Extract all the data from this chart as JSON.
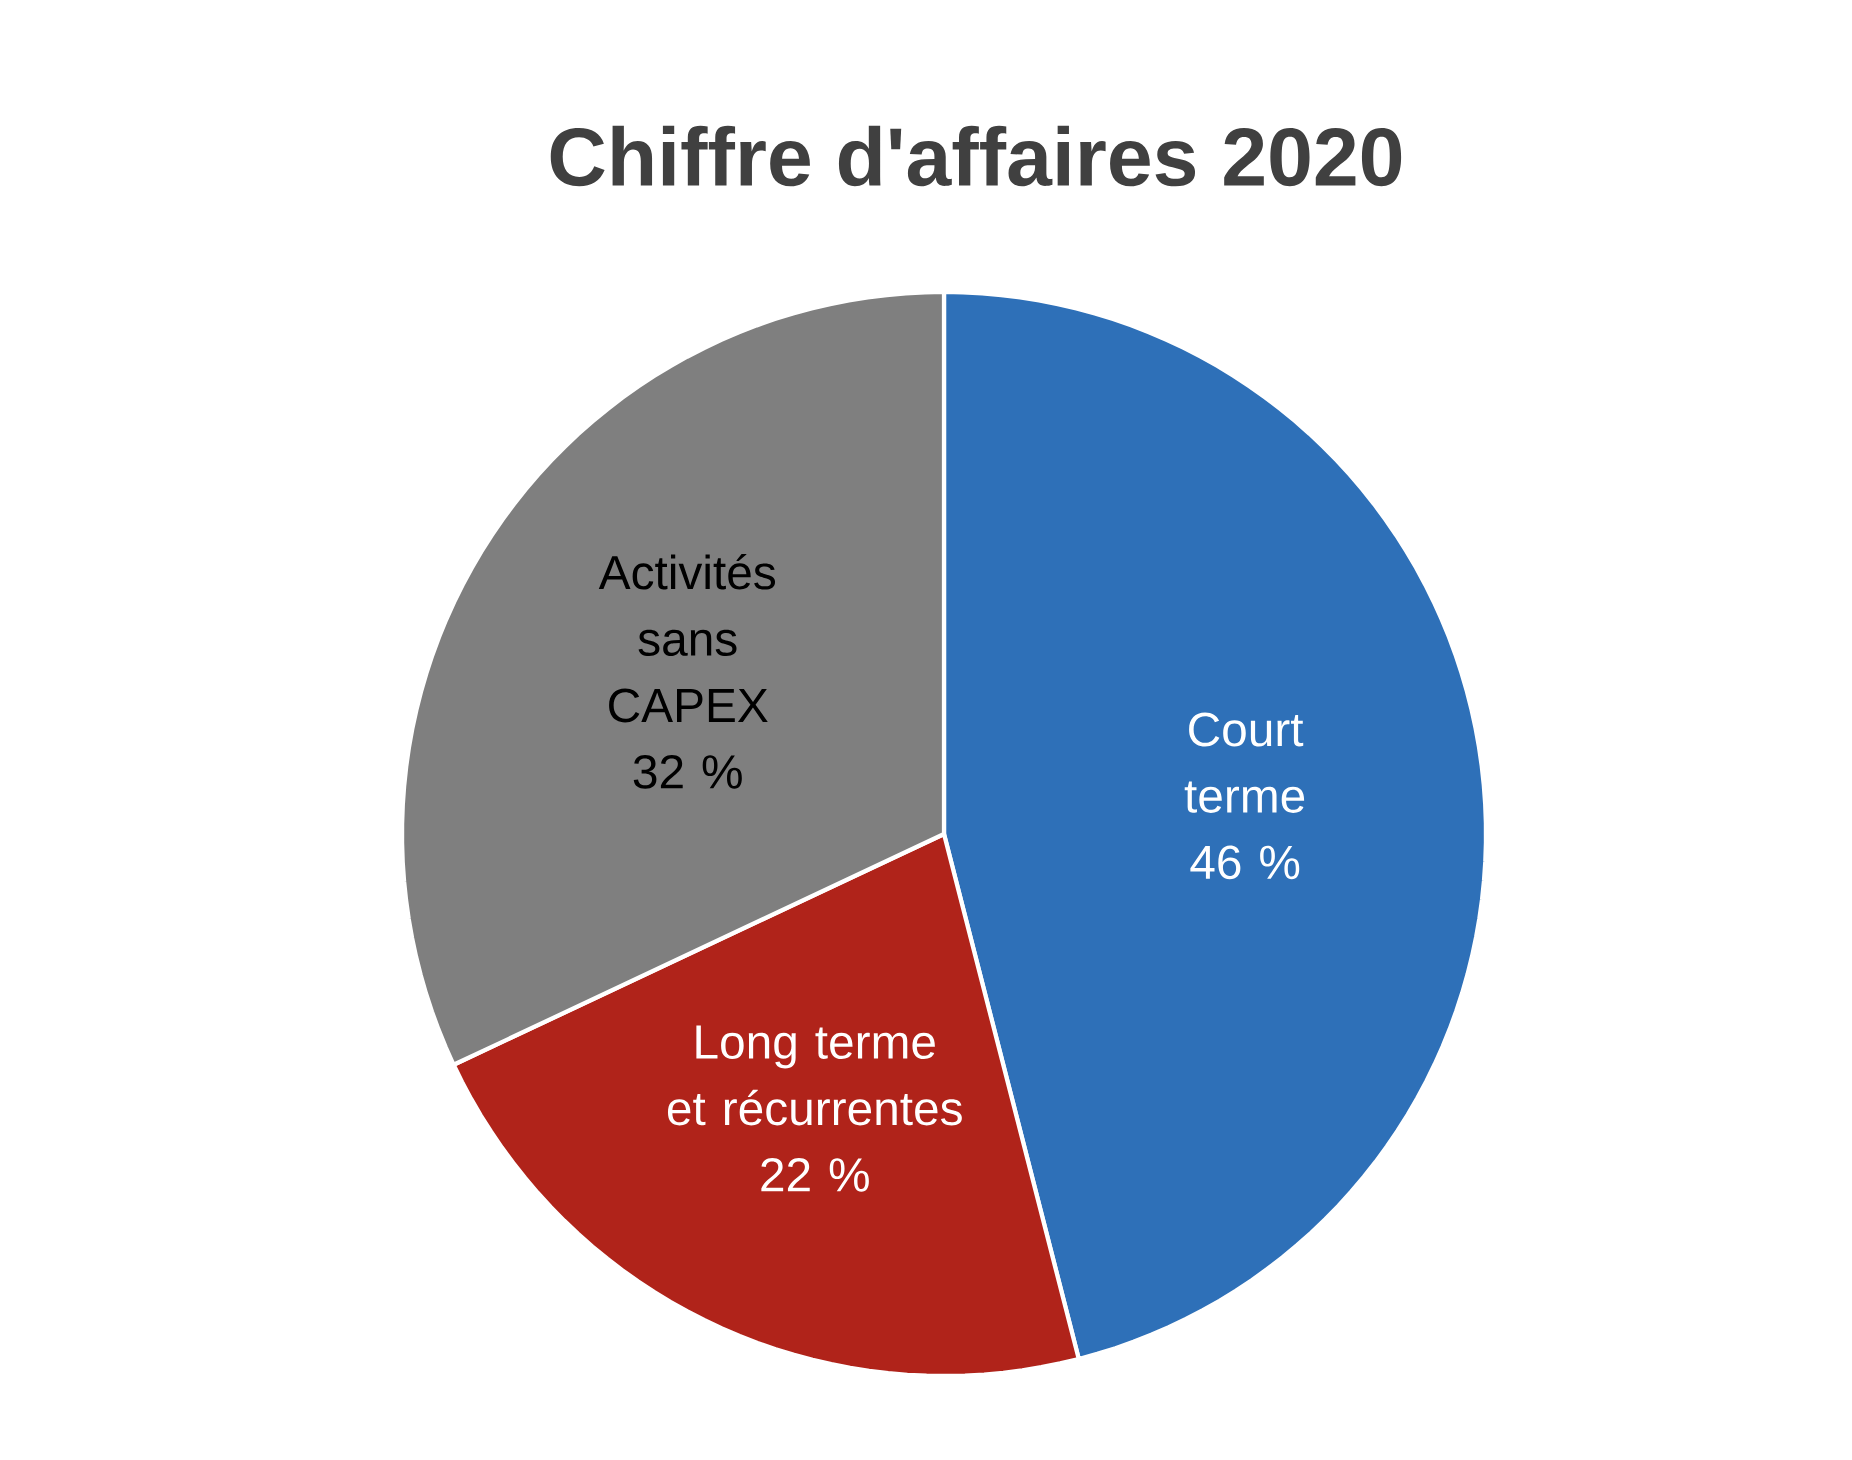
{
  "chart_data": {
    "type": "pie",
    "title": "Chiffre d'affaires 2020",
    "categories": [
      "Court terme",
      "Long terme et récurrentes",
      "Activités sans CAPEX"
    ],
    "values": [
      46,
      22,
      32
    ],
    "value_labels": [
      "46 %",
      "22 %",
      "32 %"
    ],
    "colors": [
      "#2e70b8",
      "#b0231a",
      "#7f7f7f"
    ]
  }
}
